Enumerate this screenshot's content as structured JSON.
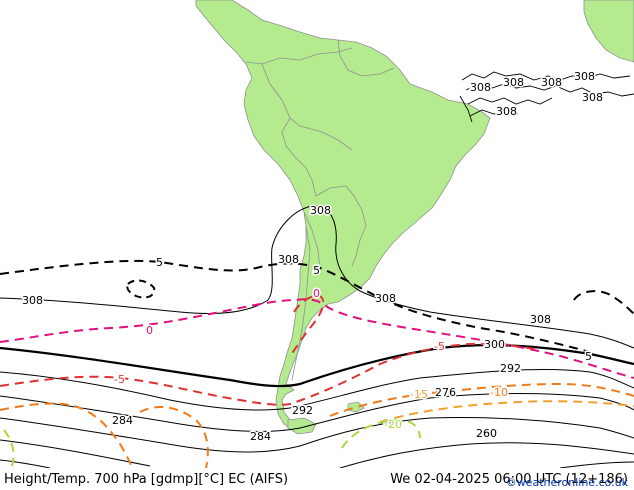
{
  "footer": {
    "title": "Height/Temp. 700 hPa [gdmp][°C] EC (AIFS)",
    "datetime": "We 02-04-2025 06:00 UTC (12+186)",
    "credit": "©weatheronline.co.uk"
  },
  "colors": {
    "land": "#b5eb8f",
    "ocean": "#ffffff",
    "border": "#909090",
    "height_contour": "#000000",
    "temp_0": "#e0117f",
    "temp_-5": "#e03030",
    "temp_-10": "#f07a1a",
    "temp_-15": "#f0a030",
    "temp_-20": "#a8d93a",
    "temp_5": "#000000"
  },
  "contour_labels": {
    "h308_ne1": "308",
    "h308_ne2": "308",
    "h308_ne3": "308",
    "h308_ne4": "308",
    "h308_ne5": "308",
    "h308_ne6": "308",
    "h308_andes": "308",
    "h308_west": "308",
    "h308_mid": "308",
    "h308_arg": "308",
    "h308_east": "308",
    "h300": "300",
    "h292_east": "292",
    "h292_south": "292",
    "h284_west": "284",
    "h284_south": "284",
    "h276": "276",
    "h260": "260",
    "t5_west": "5",
    "t5_andes": "5",
    "t5_east": "5",
    "t0_west": "0",
    "t0_andes": "0",
    "t-5_west": "-5",
    "t-5_east": "-5",
    "t-10": "-10",
    "t-15": "-15",
    "t-20": "-20"
  }
}
